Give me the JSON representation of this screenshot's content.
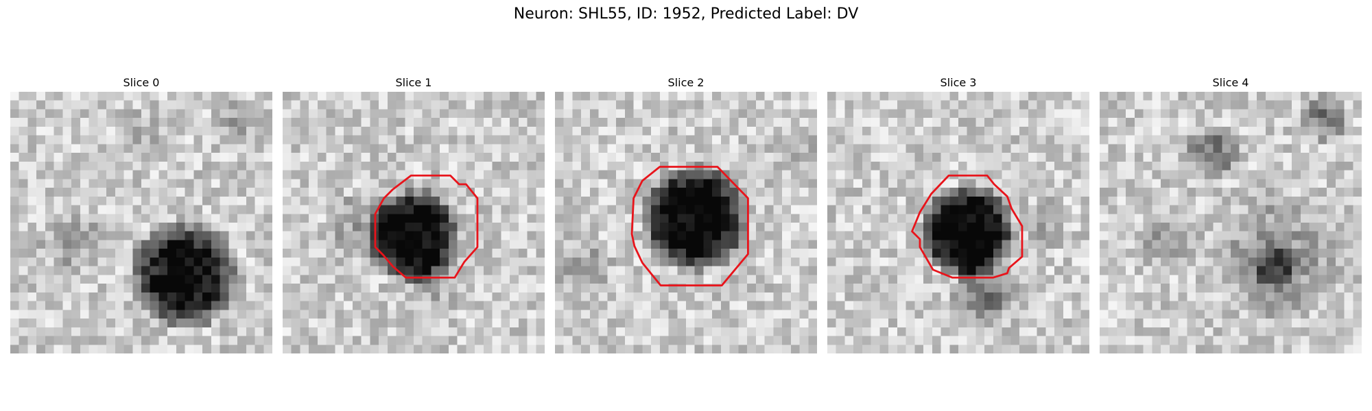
{
  "figure": {
    "title": "Neuron: SHL55, ID: 1952, Predicted Label: DV",
    "contour_color": "#e8141b"
  },
  "panels": [
    {
      "title": "Slice 0",
      "has_contour": false
    },
    {
      "title": "Slice 1",
      "has_contour": true
    },
    {
      "title": "Slice 2",
      "has_contour": true
    },
    {
      "title": "Slice 3",
      "has_contour": true
    },
    {
      "title": "Slice 4",
      "has_contour": false
    }
  ]
}
